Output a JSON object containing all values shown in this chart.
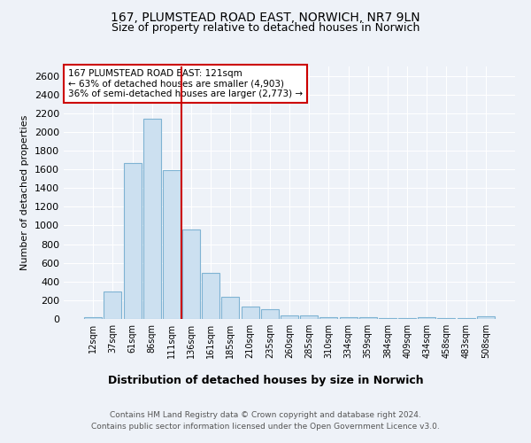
{
  "title1": "167, PLUMSTEAD ROAD EAST, NORWICH, NR7 9LN",
  "title2": "Size of property relative to detached houses in Norwich",
  "xlabel": "Distribution of detached houses by size in Norwich",
  "ylabel": "Number of detached properties",
  "bins": [
    "12sqm",
    "37sqm",
    "61sqm",
    "86sqm",
    "111sqm",
    "136sqm",
    "161sqm",
    "185sqm",
    "210sqm",
    "235sqm",
    "260sqm",
    "285sqm",
    "310sqm",
    "334sqm",
    "359sqm",
    "384sqm",
    "409sqm",
    "434sqm",
    "458sqm",
    "483sqm",
    "508sqm"
  ],
  "values": [
    15,
    290,
    1670,
    2140,
    1590,
    960,
    490,
    240,
    130,
    105,
    35,
    40,
    20,
    20,
    20,
    5,
    5,
    20,
    5,
    5,
    25
  ],
  "bar_color": "#cce0f0",
  "bar_edge_color": "#7fb3d3",
  "vline_x_index": 4.5,
  "vline_color": "#cc0000",
  "annotation_text": "167 PLUMSTEAD ROAD EAST: 121sqm\n← 63% of detached houses are smaller (4,903)\n36% of semi-detached houses are larger (2,773) →",
  "annotation_box_color": "#cc0000",
  "ylim": [
    0,
    2700
  ],
  "yticks": [
    0,
    200,
    400,
    600,
    800,
    1000,
    1200,
    1400,
    1600,
    1800,
    2000,
    2200,
    2400,
    2600
  ],
  "footer1": "Contains HM Land Registry data © Crown copyright and database right 2024.",
  "footer2": "Contains public sector information licensed under the Open Government Licence v3.0.",
  "background_color": "#eef2f8",
  "plot_bg_color": "#eef2f8"
}
